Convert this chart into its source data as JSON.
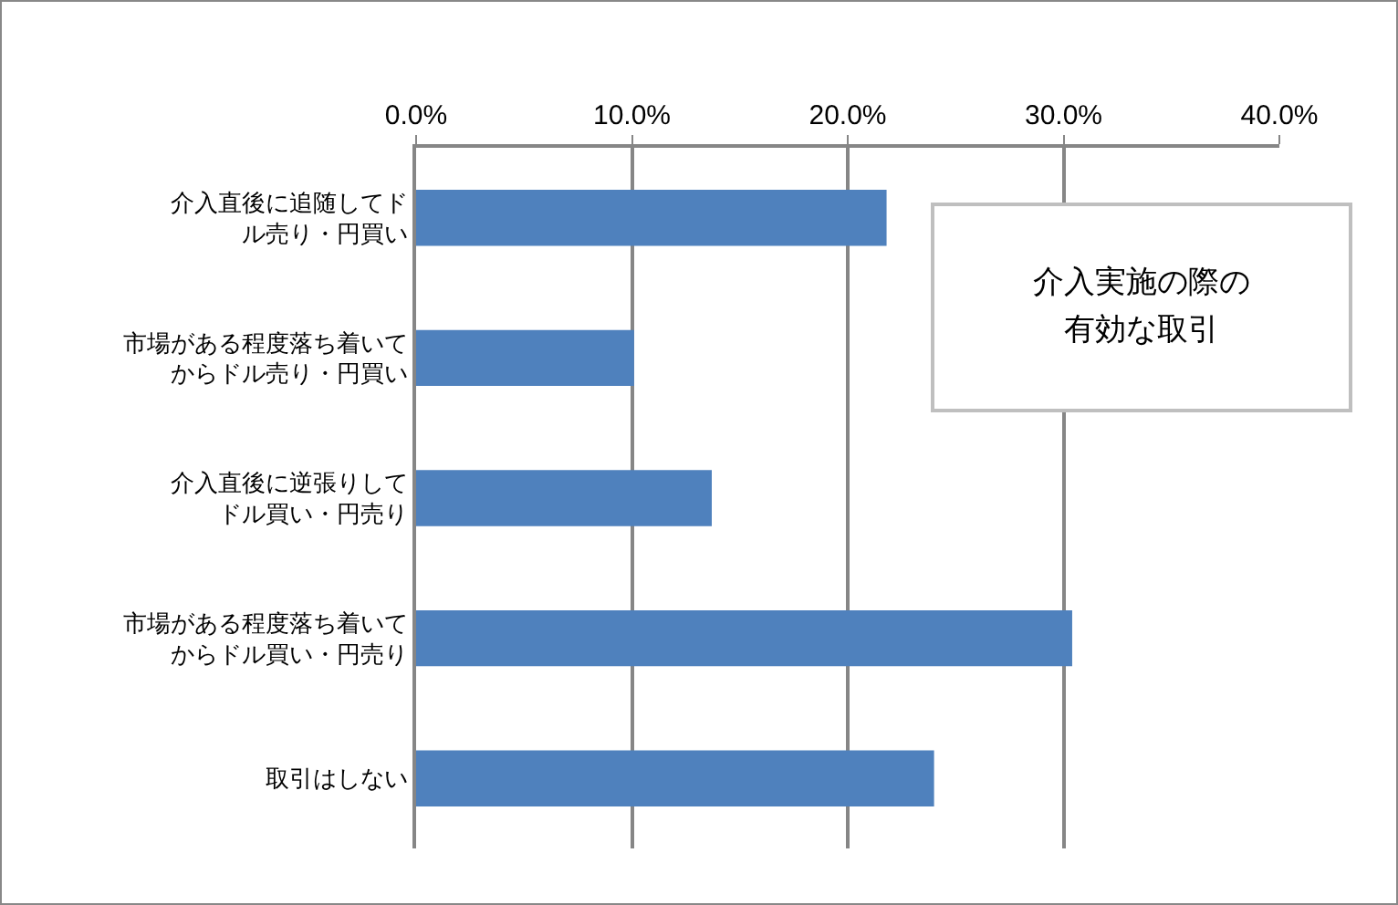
{
  "chart_data": {
    "type": "bar",
    "orientation": "horizontal",
    "title": "介入実施の際の有効な取引",
    "categories": [
      "介入直後に追随してドル売り・円買い",
      "市場がある程度落ち着いてからドル売り・円買い",
      "介入直後に逆張りしてドル買い・円売り",
      "市場がある程度落ち着いてからドル買い・円売り",
      "取引はしない"
    ],
    "values": [
      21.8,
      10.1,
      13.7,
      30.4,
      24.0
    ],
    "color": "#4f81bd",
    "xlim": [
      0,
      40
    ],
    "xticks": [
      {
        "value": 0,
        "label": "0.0%"
      },
      {
        "value": 10,
        "label": "10.0%"
      },
      {
        "value": 20,
        "label": "20.0%"
      },
      {
        "value": 30,
        "label": "30.0%"
      },
      {
        "value": 40,
        "label": "40.0%"
      }
    ],
    "grid": "x"
  }
}
